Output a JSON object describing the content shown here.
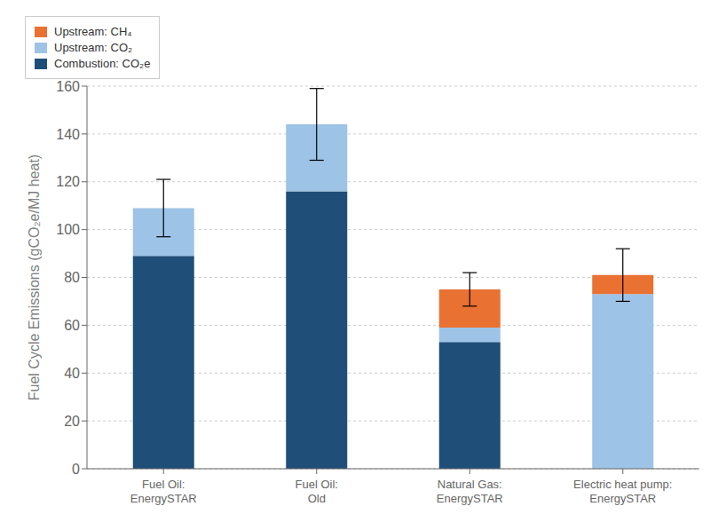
{
  "chart_data": {
    "type": "bar",
    "stacked": true,
    "grid": true,
    "legend": "upper right",
    "categories": [
      "Fuel Oil:\nEnergySTAR",
      "Fuel Oil:\nOld",
      "Natural Gas:\nEnergySTAR",
      "Electric heat pump:\nEnergySTAR"
    ],
    "series": [
      {
        "name": "Combustion: CO₂e",
        "color": "#1F4E79",
        "values": [
          89,
          116,
          53,
          0
        ]
      },
      {
        "name": "Upstream: CO₂",
        "color": "#9DC3E6",
        "values": [
          20,
          28,
          6,
          73
        ]
      },
      {
        "name": "Upstream: CH₄",
        "color": "#E97132",
        "values": [
          0,
          0,
          16,
          8
        ]
      }
    ],
    "error_bar_centers": [
      109,
      144,
      75,
      81
    ],
    "error_bars": [
      12,
      15,
      7,
      11
    ],
    "ylabel": "Fuel Cycle Emissions (gCO₂e/MJ heat)",
    "ylim": [
      0,
      160
    ],
    "yticks": [
      0,
      20,
      40,
      60,
      80,
      100,
      120,
      140,
      160
    ]
  }
}
